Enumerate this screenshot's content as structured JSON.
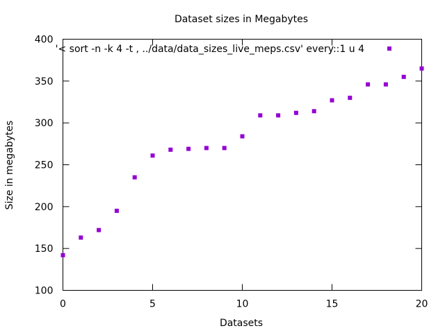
{
  "chart_data": {
    "type": "scatter",
    "title": "Dataset sizes in Megabytes",
    "xlabel": "Datasets",
    "ylabel": "Size in megabytes",
    "xlim": [
      0,
      20
    ],
    "ylim": [
      100,
      400
    ],
    "xticks": [
      "0",
      "5",
      "10",
      "15",
      "20"
    ],
    "yticks": [
      "100",
      "150",
      "200",
      "250",
      "300",
      "350",
      "400"
    ],
    "grid": false,
    "legend_position": "top-right",
    "series": [
      {
        "name": "'< sort -n -k 4 -t , ../data/data_sizes_live_meps.csv' every::1 u 4",
        "color": "#9400d3",
        "marker": "filled-square",
        "x": [
          0,
          1,
          2,
          3,
          4,
          5,
          6,
          7,
          8,
          9,
          10,
          11,
          12,
          13,
          14,
          15,
          16,
          17,
          18,
          19,
          20
        ],
        "y": [
          142,
          163,
          172,
          195,
          235,
          261,
          268,
          269,
          270,
          270,
          284,
          309,
          309,
          312,
          314,
          327,
          330,
          346,
          346,
          355,
          365
        ]
      }
    ]
  }
}
